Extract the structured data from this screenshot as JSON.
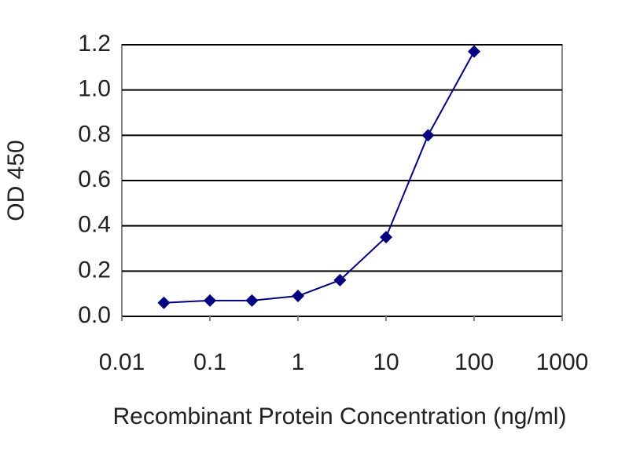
{
  "chart_data": {
    "type": "line",
    "x_label": "Recombinant Protein Concentration (ng/ml)",
    "y_label": "OD 450",
    "x": [
      0.03,
      0.1,
      0.3,
      1,
      3,
      10,
      30,
      100
    ],
    "series": [
      {
        "color": "#000080",
        "values": [
          0.06,
          0.07,
          0.07,
          0.09,
          0.16,
          0.35,
          0.8,
          1.17
        ]
      }
    ],
    "xscale": "log",
    "xlim": [
      0.01,
      1000
    ],
    "xticks": [
      0.01,
      0.1,
      1,
      10,
      100,
      1000
    ],
    "ylim": [
      0,
      1.2
    ],
    "yticks": [
      {
        "value": 0,
        "label": "0.0"
      },
      0.2,
      0.4,
      0.6,
      0.8,
      {
        "value": 1,
        "label": "1.0"
      },
      1.2
    ],
    "grid": "y"
  }
}
